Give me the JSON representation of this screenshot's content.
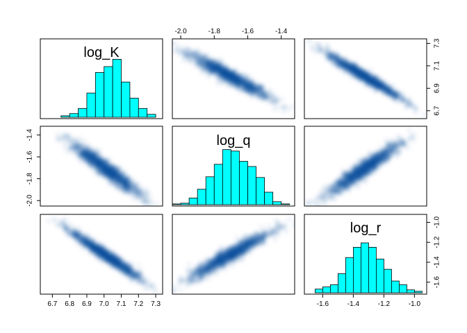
{
  "chart_data": {
    "type": "scatter-matrix",
    "variables": [
      "log_K",
      "log_q",
      "log_r"
    ],
    "diagonal": "histogram",
    "off_diagonal": "smoothed density scatter",
    "colors": {
      "histogram_fill": "#00FFFF",
      "histogram_edge": "#000000",
      "density": "#08519C"
    },
    "axis_ticks": {
      "log_K": [
        6.7,
        6.8,
        6.9,
        7.0,
        7.1,
        7.2,
        7.3
      ],
      "log_K_side": [
        6.7,
        6.9,
        7.1,
        7.3
      ],
      "log_q": [
        -2.0,
        -1.8,
        -1.6,
        -1.4
      ],
      "log_r": [
        -1.6,
        -1.4,
        -1.2,
        -1.0
      ]
    },
    "tick_labels": {
      "log_K_bottom": [
        "6.7",
        "6.8",
        "6.9",
        "7.0",
        "7.1",
        "7.2",
        "7.3"
      ],
      "log_K_right": [
        "6.7",
        "6.9",
        "7.1",
        "7.3"
      ],
      "log_q_top": [
        "-2.0",
        "-1.8",
        "-1.6",
        "-1.4"
      ],
      "log_q_left": [
        "-1.4",
        "-1.6",
        "-1.8",
        "-2.0"
      ],
      "log_r_bottom": [
        "-1.6",
        "-1.4",
        "-1.2",
        "-1.0"
      ],
      "log_r_right": [
        "-1.0",
        "-1.2",
        "-1.4",
        "-1.6"
      ]
    },
    "ranges": {
      "log_K": [
        6.63,
        7.34
      ],
      "log_q": [
        -2.05,
        -1.32
      ],
      "log_r": [
        -1.72,
        -0.92
      ]
    },
    "histograms": [
      {
        "variable": "log_K",
        "bin_width": 0.05,
        "bin_starts": [
          6.75,
          6.8,
          6.85,
          6.9,
          6.95,
          7.0,
          7.05,
          7.1,
          7.15,
          7.2,
          7.25
        ],
        "relative_heights": [
          0.02,
          0.05,
          0.12,
          0.33,
          0.61,
          0.69,
          0.79,
          0.48,
          0.26,
          0.12,
          0.04
        ]
      },
      {
        "variable": "log_q",
        "bin_width": 0.05,
        "bin_starts": [
          -2.05,
          -2.0,
          -1.95,
          -1.9,
          -1.85,
          -1.8,
          -1.75,
          -1.7,
          -1.65,
          -1.6,
          -1.55,
          -1.5,
          -1.45,
          -1.4
        ],
        "relative_heights": [
          0.01,
          0.02,
          0.09,
          0.21,
          0.38,
          0.55,
          0.75,
          0.73,
          0.59,
          0.52,
          0.37,
          0.17,
          0.04,
          0.01
        ]
      },
      {
        "variable": "log_r",
        "bin_width": 0.05,
        "bin_starts": [
          -1.65,
          -1.6,
          -1.55,
          -1.5,
          -1.45,
          -1.4,
          -1.35,
          -1.3,
          -1.25,
          -1.2,
          -1.15,
          -1.1,
          -1.05,
          -1.0
        ],
        "relative_heights": [
          0.05,
          0.08,
          0.11,
          0.26,
          0.48,
          0.62,
          0.68,
          0.62,
          0.46,
          0.32,
          0.16,
          0.11,
          0.04,
          0.02
        ]
      }
    ],
    "correlations": [
      {
        "x": "log_K",
        "y": "log_q",
        "r": -0.95
      },
      {
        "x": "log_K",
        "y": "log_r",
        "r": -0.97
      },
      {
        "x": "log_q",
        "y": "log_r",
        "r": 0.95
      }
    ]
  }
}
